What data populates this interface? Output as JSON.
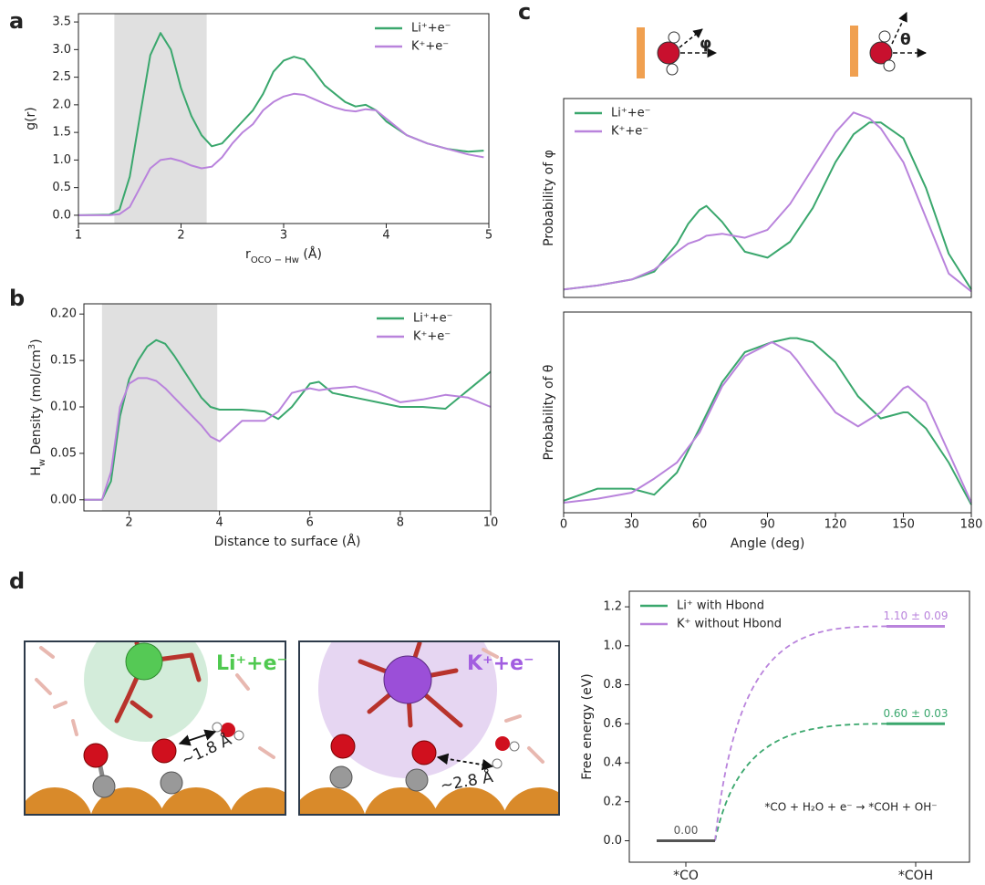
{
  "chart_data": [
    {
      "type": "line",
      "panel": "a",
      "ylabel": "g(r)",
      "xlabel": [
        {
          "text": "r"
        },
        {
          "text": "OCO − Hw",
          "shift": "sub"
        },
        {
          "text": " (Å)"
        }
      ],
      "xlim": [
        1,
        5
      ],
      "ylim": [
        -0.15,
        3.65
      ],
      "xticks": [
        1,
        2,
        3,
        4,
        5
      ],
      "yticks": [
        {
          "value": 0,
          "label": "0.0"
        },
        0.5,
        {
          "value": 1,
          "label": "1.0"
        },
        1.5,
        {
          "value": 2,
          "label": "2.0"
        },
        2.5,
        {
          "value": 3,
          "label": "3.0"
        },
        3.5
      ],
      "shade": [
        1.35,
        2.25
      ],
      "shade_color": "#e0e0e0",
      "legend": "upper right",
      "x": [
        1.0,
        1.3,
        1.4,
        1.5,
        1.6,
        1.7,
        1.8,
        1.9,
        2.0,
        2.1,
        2.2,
        2.3,
        2.4,
        2.5,
        2.6,
        2.7,
        2.8,
        2.9,
        3.0,
        3.1,
        3.2,
        3.3,
        3.4,
        3.5,
        3.6,
        3.7,
        3.8,
        3.9,
        4.0,
        4.2,
        4.4,
        4.6,
        4.8,
        4.95
      ],
      "series": [
        {
          "name": "Li⁺+e⁻",
          "color": "#3aa76d",
          "values": [
            0,
            0.01,
            0.1,
            0.7,
            1.8,
            2.9,
            3.3,
            3.0,
            2.3,
            1.8,
            1.45,
            1.25,
            1.3,
            1.5,
            1.7,
            1.9,
            2.2,
            2.6,
            2.8,
            2.87,
            2.82,
            2.6,
            2.35,
            2.2,
            2.05,
            1.97,
            2.0,
            1.9,
            1.7,
            1.45,
            1.3,
            1.2,
            1.15,
            1.17
          ]
        },
        {
          "name": "K⁺+e⁻",
          "color": "#b983dc",
          "values": [
            0,
            0,
            0.02,
            0.15,
            0.5,
            0.85,
            1.0,
            1.03,
            0.98,
            0.9,
            0.85,
            0.88,
            1.05,
            1.3,
            1.5,
            1.65,
            1.9,
            2.05,
            2.15,
            2.2,
            2.18,
            2.1,
            2.02,
            1.95,
            1.9,
            1.88,
            1.92,
            1.9,
            1.75,
            1.45,
            1.3,
            1.2,
            1.1,
            1.05
          ]
        }
      ]
    },
    {
      "type": "line",
      "panel": "b",
      "ylabel": [
        {
          "text": "H"
        },
        {
          "text": "w",
          "shift": "sub"
        },
        {
          "text": " Density (mol/cm"
        },
        {
          "text": "3",
          "shift": "super"
        },
        {
          "text": ")"
        }
      ],
      "xlabel": "Distance to surface (Å)",
      "xlim": [
        1,
        10
      ],
      "ylim": [
        -0.012,
        0.211
      ],
      "xticks": [
        2,
        4,
        6,
        8,
        10
      ],
      "yticks": [
        {
          "value": 0,
          "label": "0.00"
        },
        0.05,
        {
          "value": 0.1,
          "label": "0.10"
        },
        0.15,
        {
          "value": 0.2,
          "label": "0.20"
        }
      ],
      "shade": [
        1.4,
        3.95
      ],
      "shade_color": "#e0e0e0",
      "legend": "upper right",
      "x": [
        1,
        1.4,
        1.6,
        1.8,
        2.0,
        2.2,
        2.4,
        2.6,
        2.8,
        3.0,
        3.2,
        3.4,
        3.6,
        3.8,
        4.0,
        4.5,
        5.0,
        5.3,
        5.6,
        6.0,
        6.2,
        6.5,
        7.0,
        7.5,
        8.0,
        8.5,
        9.0,
        9.5,
        10
      ],
      "series": [
        {
          "name": "Li⁺+e⁻",
          "color": "#3aa76d",
          "values": [
            0,
            0,
            0.02,
            0.09,
            0.13,
            0.15,
            0.165,
            0.172,
            0.168,
            0.155,
            0.14,
            0.125,
            0.11,
            0.1,
            0.097,
            0.097,
            0.095,
            0.087,
            0.1,
            0.125,
            0.127,
            0.115,
            0.11,
            0.105,
            0.1,
            0.1,
            0.098,
            0.118,
            0.138
          ]
        },
        {
          "name": "K⁺+e⁻",
          "color": "#b983dc",
          "values": [
            0,
            0,
            0.03,
            0.1,
            0.125,
            0.131,
            0.131,
            0.128,
            0.12,
            0.11,
            0.1,
            0.09,
            0.08,
            0.068,
            0.063,
            0.085,
            0.085,
            0.095,
            0.115,
            0.12,
            0.118,
            0.12,
            0.122,
            0.115,
            0.105,
            0.108,
            0.113,
            0.11,
            0.1
          ]
        }
      ]
    },
    {
      "type": "line",
      "panel": "c",
      "ylabel": "Probability of φ",
      "xlim": [
        0,
        180
      ],
      "ylim": [
        0,
        1
      ],
      "legend": "upper left",
      "x": [
        0,
        15,
        30,
        40,
        50,
        55,
        60,
        63,
        70,
        80,
        90,
        100,
        110,
        120,
        128,
        135,
        140,
        150,
        160,
        170,
        180
      ],
      "series": [
        {
          "name": "Li⁺+e⁻",
          "color": "#3aa76d",
          "values": [
            0.04,
            0.06,
            0.09,
            0.13,
            0.27,
            0.37,
            0.44,
            0.46,
            0.38,
            0.23,
            0.2,
            0.28,
            0.45,
            0.68,
            0.82,
            0.88,
            0.88,
            0.8,
            0.55,
            0.22,
            0.04
          ]
        },
        {
          "name": "K⁺+e⁻",
          "color": "#b983dc",
          "values": [
            0.04,
            0.06,
            0.09,
            0.14,
            0.23,
            0.27,
            0.29,
            0.31,
            0.32,
            0.3,
            0.34,
            0.47,
            0.65,
            0.83,
            0.93,
            0.9,
            0.85,
            0.68,
            0.4,
            0.12,
            0.03
          ]
        }
      ]
    },
    {
      "type": "line",
      "ylabel": "Probability of θ",
      "xlabel": "Angle (deg)",
      "xlim": [
        0,
        180
      ],
      "ylim": [
        0,
        1
      ],
      "xticks": [
        0,
        30,
        60,
        90,
        120,
        150,
        180
      ],
      "x": [
        0,
        15,
        30,
        40,
        50,
        60,
        70,
        80,
        92,
        100,
        103,
        110,
        120,
        130,
        140,
        150,
        152,
        160,
        170,
        180
      ],
      "series": [
        {
          "color": "#3aa76d",
          "values": [
            0.06,
            0.12,
            0.12,
            0.09,
            0.2,
            0.42,
            0.65,
            0.8,
            0.85,
            0.87,
            0.87,
            0.85,
            0.75,
            0.58,
            0.47,
            0.5,
            0.5,
            0.42,
            0.25,
            0.04
          ]
        },
        {
          "color": "#b983dc",
          "values": [
            0.05,
            0.07,
            0.1,
            0.17,
            0.25,
            0.4,
            0.63,
            0.78,
            0.85,
            0.8,
            0.76,
            0.65,
            0.5,
            0.43,
            0.5,
            0.62,
            0.63,
            0.55,
            0.3,
            0.05
          ]
        }
      ]
    },
    {
      "type": "energy",
      "panel": "d",
      "ylabel": "Free energy (eV)",
      "annotation": "*CO + H₂O + e⁻ → *COH + OH⁻",
      "categories": [
        "*CO",
        "*COH"
      ],
      "ylim": [
        -0.11,
        1.28
      ],
      "yticks": [
        {
          "value": 0,
          "label": "0.0"
        },
        0.2,
        0.4,
        0.6,
        0.8,
        {
          "value": 1,
          "label": "1.0"
        },
        1.2
      ],
      "start_color": "#555555",
      "legend": "upper left",
      "series": [
        {
          "name": "Li⁺ with Hbond",
          "color": "#3aa76d",
          "values": [
            0,
            0.6
          ],
          "value_labels": [
            "0.00",
            "0.60 ± 0.03"
          ]
        },
        {
          "name": "K⁺ without Hbond",
          "color": "#b983dc",
          "values": [
            0,
            1.1
          ],
          "value_labels": [
            null,
            "1.10 ± 0.09"
          ]
        }
      ]
    }
  ],
  "figure": {
    "icons": [
      "φ",
      "θ"
    ],
    "illustrations": [
      {
        "label": "Li⁺+e⁻",
        "distance": "~1.8 Å"
      },
      {
        "label": "K⁺+e⁻",
        "distance": "~2.8 Å"
      }
    ]
  }
}
